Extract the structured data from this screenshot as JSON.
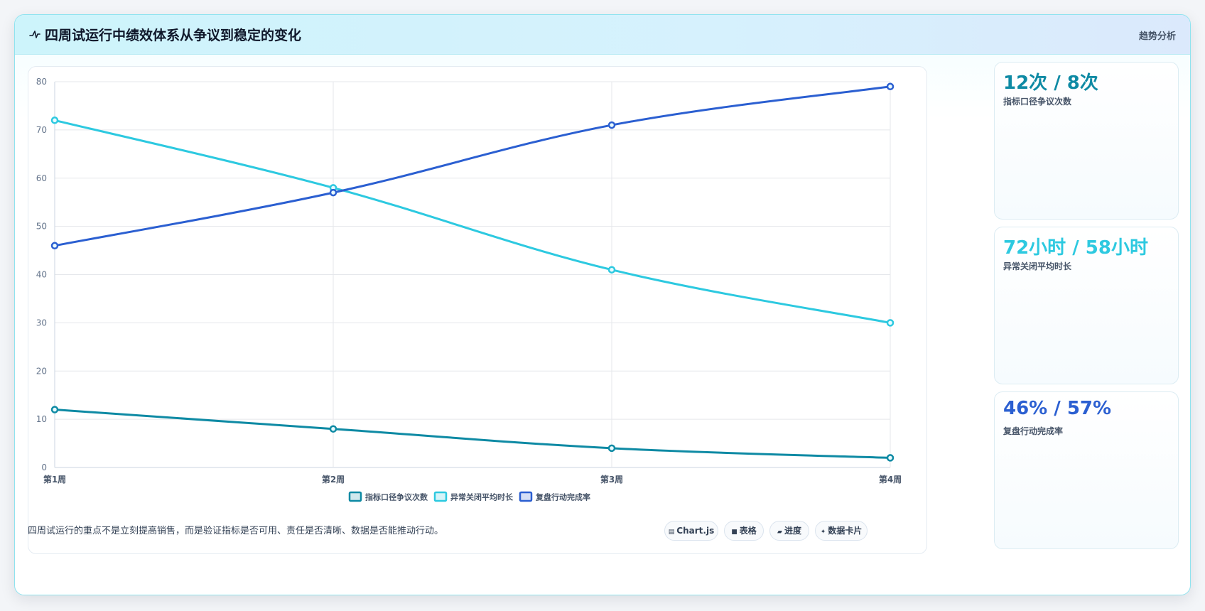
{
  "header": {
    "title": "四周试运行中绩效体系从争议到稳定的变化",
    "tag": "趋势分析",
    "icon": "pulse-icon"
  },
  "stats": [
    {
      "value": "12次 / 8次",
      "label": "指标口径争议次数",
      "color": "#0e8aa4"
    },
    {
      "value": "72小时 / 58小时",
      "label": "异常关闭平均时长",
      "color": "#2dc9e0"
    },
    {
      "value": "46% / 57%",
      "label": "复盘行动完成率",
      "color": "#2b5fd1"
    }
  ],
  "footer": {
    "text": "四周试运行的重点不是立刻提高销售，而是验证指标是否可用、责任是否清晰、数据是否能推动行动。",
    "chips": [
      {
        "icon": "chart-icon",
        "glyph": "▤",
        "label": "Chart.js"
      },
      {
        "icon": "table-icon",
        "glyph": "■",
        "label": "表格"
      },
      {
        "icon": "progress-icon",
        "glyph": "▰",
        "label": "进度"
      },
      {
        "icon": "sparkle-icon",
        "glyph": "✦",
        "label": "数据卡片"
      }
    ]
  },
  "chart_data": {
    "type": "line",
    "categories": [
      "第1周",
      "第2周",
      "第3周",
      "第4周"
    ],
    "ylim": [
      0,
      80
    ],
    "yticks": [
      0,
      10,
      20,
      30,
      40,
      50,
      60,
      70,
      80
    ],
    "grid": true,
    "legend_position": "bottom",
    "series": [
      {
        "name": "指标口径争议次数",
        "values": [
          12,
          8,
          4,
          2
        ],
        "color": "#0e8aa4"
      },
      {
        "name": "异常关闭平均时长",
        "values": [
          72,
          58,
          41,
          30
        ],
        "color": "#2dc9e0"
      },
      {
        "name": "复盘行动完成率",
        "values": [
          46,
          57,
          71,
          79
        ],
        "color": "#2b5fd1"
      }
    ]
  }
}
